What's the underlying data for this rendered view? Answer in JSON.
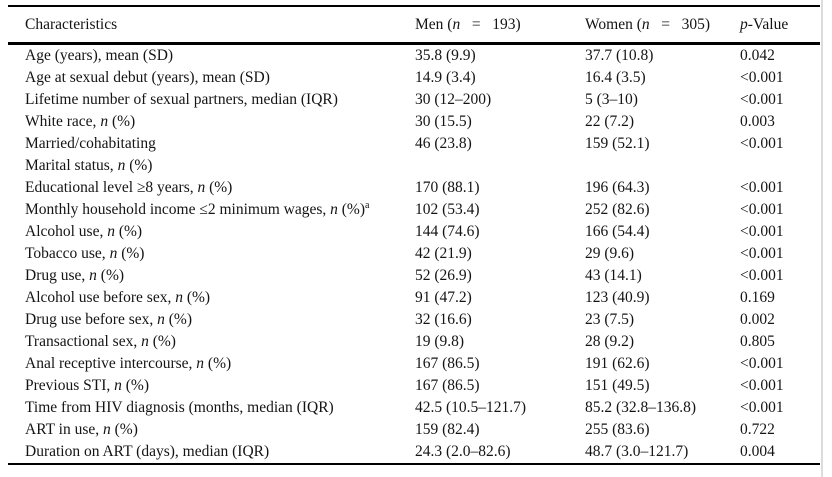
{
  "colors": {
    "background": "#ffffff",
    "text": "#141414",
    "rule": "#000000",
    "scan_artifact": "#dcdcdc"
  },
  "table": {
    "columns": [
      "Characteristics",
      "Men (n  =  193)",
      "Women (n  =  305)",
      "p-Value"
    ],
    "rows": [
      {
        "label": "Age (years), mean (SD)",
        "men": "35.8 (9.9)",
        "women": "37.7 (10.8)",
        "p": "0.042"
      },
      {
        "label": "Age at sexual debut (years), mean (SD)",
        "men": "14.9 (3.4)",
        "women": "16.4 (3.5)",
        "p": "<0.001"
      },
      {
        "label": "Lifetime number of sexual partners, median (IQR)",
        "men": "30 (12–200)",
        "women": "5 (3–10)",
        "p": "<0.001"
      },
      {
        "label": "White race, n (%)",
        "men": "30 (15.5)",
        "women": "22 (7.2)",
        "p": "0.003"
      },
      {
        "label": "Married/cohabitating",
        "men": "46 (23.8)",
        "women": "159 (52.1)",
        "p": "<0.001"
      },
      {
        "label": "Marital status, n (%)",
        "men": "",
        "women": "",
        "p": ""
      },
      {
        "label": "Educational level ≥8 years, n (%)",
        "men": "170 (88.1)",
        "women": "196 (64.3)",
        "p": "<0.001"
      },
      {
        "label": "Monthly household income ≤2 minimum wages, n (%)^a",
        "men": "102 (53.4)",
        "women": "252 (82.6)",
        "p": "<0.001"
      },
      {
        "label": "Alcohol use, n (%)",
        "men": "144 (74.6)",
        "women": "166 (54.4)",
        "p": "<0.001"
      },
      {
        "label": "Tobacco use, n (%)",
        "men": "42 (21.9)",
        "women": "29 (9.6)",
        "p": "<0.001"
      },
      {
        "label": "Drug use, n (%)",
        "men": "52 (26.9)",
        "women": "43 (14.1)",
        "p": "<0.001"
      },
      {
        "label": "Alcohol use before sex, n (%)",
        "men": "91 (47.2)",
        "women": "123 (40.9)",
        "p": "0.169"
      },
      {
        "label": "Drug use before sex, n (%)",
        "men": "32 (16.6)",
        "women": "23 (7.5)",
        "p": "0.002"
      },
      {
        "label": "Transactional sex, n (%)",
        "men": "19 (9.8)",
        "women": "28 (9.2)",
        "p": "0.805"
      },
      {
        "label": "Anal receptive intercourse, n (%)",
        "men": "167 (86.5)",
        "women": "191 (62.6)",
        "p": "<0.001"
      },
      {
        "label": "Previous STI, n (%)",
        "men": "167 (86.5)",
        "women": "151 (49.5)",
        "p": "<0.001"
      },
      {
        "label": "Time from HIV diagnosis (months, median (IQR)",
        "men": "42.5 (10.5–121.7)",
        "women": "85.2 (32.8–136.8)",
        "p": "<0.001"
      },
      {
        "label": "ART in use, n (%)",
        "men": "159 (82.4)",
        "women": "255 (83.6)",
        "p": "0.722"
      },
      {
        "label": "Duration on ART (days), median (IQR)",
        "men": "24.3 (2.0–82.6)",
        "women": "48.7 (3.0–121.7)",
        "p": "0.004"
      }
    ]
  }
}
